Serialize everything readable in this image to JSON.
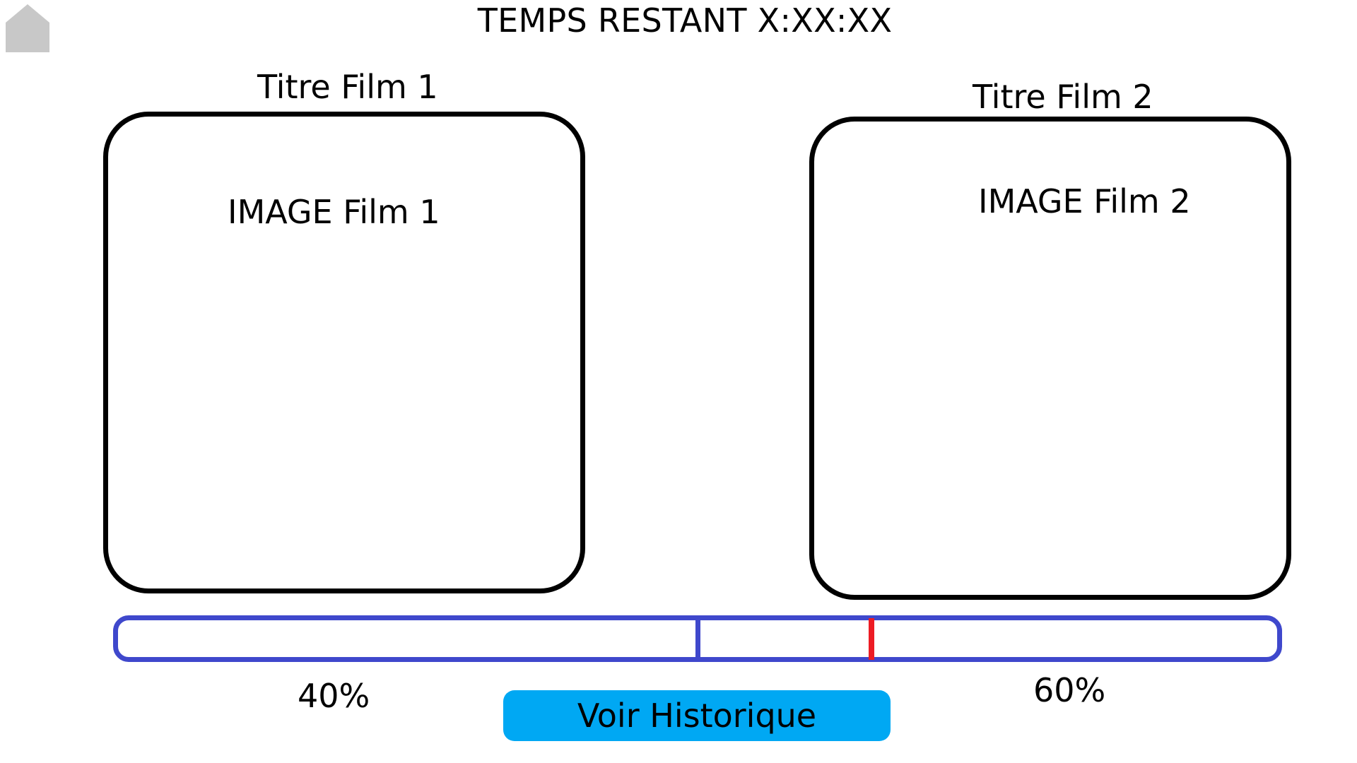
{
  "header": {
    "home_icon": "home-icon",
    "timer_text": "TEMPS RESTANT X:XX:XX"
  },
  "films": [
    {
      "title": "Titre Film 1",
      "image_label": "IMAGE Film 1"
    },
    {
      "title": "Titre Film 2",
      "image_label": "IMAGE Film 2"
    }
  ],
  "vote": {
    "film_1_percent_label": "40%",
    "film_2_percent_label": "60%",
    "split_fraction": 0.5,
    "marker_fraction": 0.65,
    "colors": {
      "bar": "#3f48cc",
      "marker": "#ed1c24"
    }
  },
  "actions": {
    "history_button_label": "Voir Historique",
    "history_button_color": "#00a8f3"
  },
  "colors": {
    "home_icon": "#c8c8c8",
    "card_border": "#000000"
  }
}
